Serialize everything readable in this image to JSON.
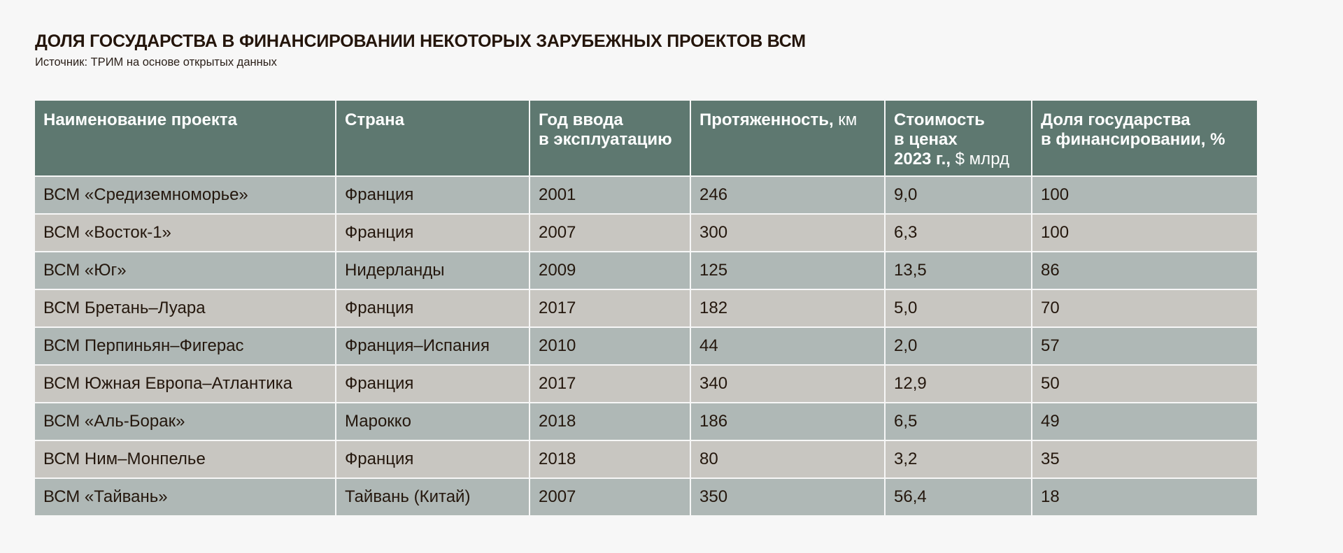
{
  "header": {
    "title": "ДОЛЯ ГОСУДАРСТВА В ФИНАНСИРОВАНИИ НЕКОТОРЫХ ЗАРУБЕЖНЫХ ПРОЕКТОВ ВСМ",
    "source": "Источник: ТРИМ на основе открытых данных"
  },
  "colors": {
    "header_bg": "#5e7870",
    "row_odd_bg": "#afb8b6",
    "row_even_bg": "#c8c6c1",
    "page_bg": "#f7f7f7"
  },
  "table": {
    "columns": [
      {
        "bold": "Наименование проекта",
        "unit": ""
      },
      {
        "bold": "Страна",
        "unit": ""
      },
      {
        "bold": "Год ввода в эксплуатацию",
        "line1": "Год ввода",
        "line2": "в эксплуатацию",
        "unit": ""
      },
      {
        "bold": "Протяженность,",
        "unit": " км"
      },
      {
        "bold": "Стоимость в ценах 2023 г.,",
        "line1": "Стоимость",
        "line2": "в ценах",
        "line3": "2023 г.,",
        "unit": " $ млрд"
      },
      {
        "bold": "Доля государства в финансировании, %",
        "line1": "Доля государства",
        "line2": "в финансировании, %",
        "unit": ""
      }
    ],
    "rows": [
      [
        "ВСМ «Средиземноморье»",
        "Франция",
        "2001",
        "246",
        "9,0",
        "100"
      ],
      [
        "ВСМ «Восток-1»",
        "Франция",
        "2007",
        "300",
        "6,3",
        "100"
      ],
      [
        "ВСМ «Юг»",
        "Нидерланды",
        "2009",
        "125",
        "13,5",
        "86"
      ],
      [
        "ВСМ Бретань–Луара",
        "Франция",
        "2017",
        "182",
        "5,0",
        "70"
      ],
      [
        "ВСМ Перпиньян–Фигерас",
        "Франция–Испания",
        "2010",
        "44",
        "2,0",
        "57"
      ],
      [
        "ВСМ Южная Европа–Атлантика",
        "Франция",
        "2017",
        "340",
        "12,9",
        "50"
      ],
      [
        "ВСМ «Аль-Борак»",
        "Марокко",
        "2018",
        "186",
        "6,5",
        "49"
      ],
      [
        "ВСМ Ним–Монпелье",
        "Франция",
        "2018",
        "80",
        "3,2",
        "35"
      ],
      [
        "ВСМ «Тайвань»",
        "Тайвань (Китай)",
        "2007",
        "350",
        "56,4",
        "18"
      ]
    ]
  }
}
